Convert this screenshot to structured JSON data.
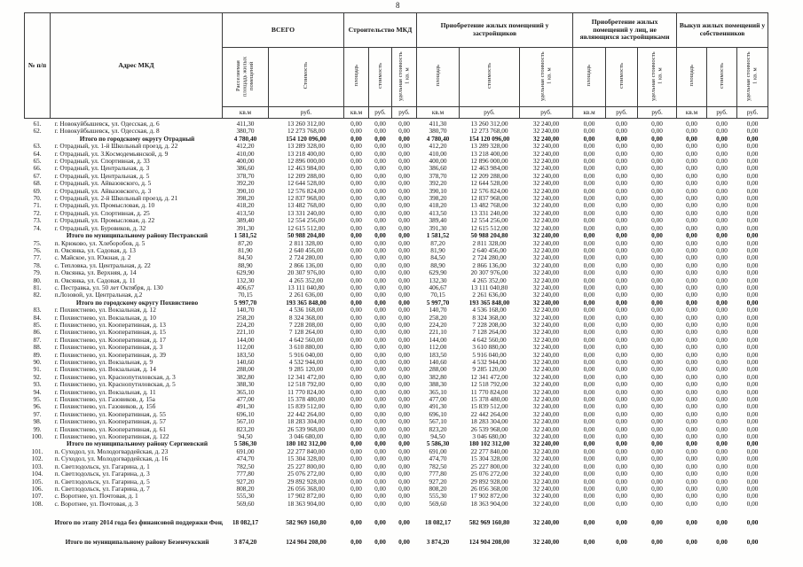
{
  "page_number": "8",
  "table": {
    "header": {
      "num": "№ п/п",
      "address": "Адрес МКД"
    },
    "groups": [
      {
        "label": "ВСЕГО",
        "cols": [
          "Расселяемая площадь жилых помещений",
          "Стоимость"
        ],
        "units": [
          "кв.м",
          "руб."
        ]
      },
      {
        "label": "Строительство МКД",
        "cols": [
          "площадь",
          "стоимость",
          "удельная стоимость 1 кв. м"
        ],
        "units": [
          "кв.м",
          "руб.",
          "руб."
        ]
      },
      {
        "label": "Приобретение жилых помещений у застройщиков",
        "cols": [
          "площадь",
          "стоимость",
          "удельная стоимость 1 кв. м"
        ],
        "units": [
          "кв.м",
          "руб.",
          "руб."
        ]
      },
      {
        "label": "Приобретение жилых помещений у лиц, не являющихся застройщиками",
        "cols": [
          "площадь",
          "стоимость",
          "удельная стоимость 1 кв. м"
        ],
        "units": [
          "кв.м",
          "руб.",
          "руб."
        ]
      },
      {
        "label": "Выкуп жилых помещений у собственников",
        "cols": [
          "площадь",
          "стоимость",
          "удельная стоимость 1 кв. м"
        ],
        "units": [
          "кв.м",
          "руб.",
          "руб."
        ]
      }
    ],
    "zero": "0,00",
    "unit_price": "32 240,00",
    "rows": [
      {
        "n": "61.",
        "a": "г. Новокуйбышевск, ул. Одесская, д. 6",
        "s": "411,30",
        "c": "13 260 312,00"
      },
      {
        "n": "62.",
        "a": "г. Новокуйбышевск, ул. Одесская, д. 8",
        "s": "380,70",
        "c": "12 273 768,00"
      },
      {
        "n": "",
        "a": "Итого по городскому округу Отрадный",
        "s": "4 780,40",
        "c": "154 120 096,00",
        "b": 1
      },
      {
        "n": "63.",
        "a": "г. Отрадный, ул. 1-й Школьный проезд, д. 22",
        "s": "412,20",
        "c": "13 289 328,00"
      },
      {
        "n": "64.",
        "a": "г. Отрадный, ул. З.Космодемьянской, д. 9",
        "s": "410,00",
        "c": "13 218 400,00"
      },
      {
        "n": "65.",
        "a": "г. Отрадный, ул. Спортивная, д. 33",
        "s": "400,00",
        "c": "12 896 000,00"
      },
      {
        "n": "66.",
        "a": "г. Отрадный, ул. Центральная, д. 3",
        "s": "386,60",
        "c": "12 463 984,00"
      },
      {
        "n": "67.",
        "a": "г. Отрадный, ул. Центральная, д. 5",
        "s": "378,70",
        "c": "12 209 288,00"
      },
      {
        "n": "68.",
        "a": "г. Отрадный, ул. Айвазовского, д. 5",
        "s": "392,20",
        "c": "12 644 528,00"
      },
      {
        "n": "69.",
        "a": "г. Отрадный, ул. Айвазовского, д. 3",
        "s": "390,10",
        "c": "12 576 824,00"
      },
      {
        "n": "70.",
        "a": "г. Отрадный, ул. 2-й Школьный проезд, д. 21",
        "s": "398,20",
        "c": "12 837 968,00"
      },
      {
        "n": "71.",
        "a": "г. Отрадный, ул. Промысловая, д. 10",
        "s": "418,20",
        "c": "13 482 768,00"
      },
      {
        "n": "72.",
        "a": "г. Отрадный, ул. Спортивная, д. 25",
        "s": "413,50",
        "c": "13 331 240,00"
      },
      {
        "n": "73.",
        "a": "г. Отрадный, ул. Промысловая, д. 22",
        "s": "389,40",
        "c": "12 554 256,00"
      },
      {
        "n": "74.",
        "a": "г. Отрадный, ул. Буровиков, д. 32",
        "s": "391,30",
        "c": "12 615 512,00"
      },
      {
        "n": "",
        "a": "Итого по муниципальному району Пестравский",
        "s": "1 581,52",
        "c": "50 988 204,80",
        "b": 1
      },
      {
        "n": "75.",
        "a": "п. Крюково, ул. Хлеборобов, д. 5",
        "s": "87,20",
        "c": "2 811 328,00"
      },
      {
        "n": "76.",
        "a": "п. Овсянка, ул. Садовая, д. 13",
        "s": "81,90",
        "c": "2 640 456,00"
      },
      {
        "n": "77.",
        "a": "с. Майское, ул. Южная, д. 2",
        "s": "84,50",
        "c": "2 724 280,00"
      },
      {
        "n": "78.",
        "a": "с. Тепловка, ул. Центральная, д. 22",
        "s": "88,90",
        "c": "2 866 136,00"
      },
      {
        "n": "79.",
        "a": "п. Овсянка, ул. Верхняя, д. 14",
        "s": "629,90",
        "c": "20 307 976,00"
      },
      {
        "n": "80.",
        "a": "п. Овсянка, ул. Садовая, д. 11",
        "s": "132,30",
        "c": "4 265 352,00"
      },
      {
        "n": "81.",
        "a": "с. Пестравка, ул. 50 лет Октября, д. 130",
        "s": "406,67",
        "c": "13 111 040,80"
      },
      {
        "n": "82.",
        "a": "п.Лозовой, ул. Центральная, д.2",
        "s": "70,15",
        "c": "2 261 636,00"
      },
      {
        "n": "",
        "a": "Итого по городскому округу Похвистнево",
        "s": "5 997,70",
        "c": "193 365 848,00",
        "b": 1
      },
      {
        "n": "83.",
        "a": "г. Похвистнево, ул. Вокзальная, д. 12",
        "s": "140,70",
        "c": "4 536 168,00"
      },
      {
        "n": "84.",
        "a": "г. Похвистнево, ул. Вокзальная, д. 10",
        "s": "258,20",
        "c": "8 324 368,00"
      },
      {
        "n": "85.",
        "a": "г. Похвистнево, ул. Кооперативная, д. 13",
        "s": "224,20",
        "c": "7 228 208,00"
      },
      {
        "n": "86.",
        "a": "г. Похвистнево, ул. Кооперативная, д. 15",
        "s": "221,10",
        "c": "7 128 264,00"
      },
      {
        "n": "87.",
        "a": "г. Похвистнево, ул. Кооперативная, д. 17",
        "s": "144,00",
        "c": "4 642 560,00"
      },
      {
        "n": "88.",
        "a": "г. Похвистнево, ул. Кооперативная, д. 3",
        "s": "112,00",
        "c": "3 610 880,00"
      },
      {
        "n": "89.",
        "a": "г. Похвистнево, ул. Кооперативная, д. 39",
        "s": "183,50",
        "c": "5 916 040,00"
      },
      {
        "n": "90.",
        "a": "г. Похвистнево, ул. Вокзальная, д. 9",
        "s": "140,60",
        "c": "4 532 944,00"
      },
      {
        "n": "91.",
        "a": "г. Похвистнево, ул. Вокзальная, д. 14",
        "s": "288,00",
        "c": "9 285 120,00"
      },
      {
        "n": "92.",
        "a": "г. Похвистнево, ул. Краснопутиловская, д. 3",
        "s": "382,80",
        "c": "12 341 472,00"
      },
      {
        "n": "93.",
        "a": "г. Похвистнево, ул. Краснопутиловская, д. 5",
        "s": "388,30",
        "c": "12 518 792,00"
      },
      {
        "n": "94.",
        "a": "г. Похвистнево, ул. Вокзальная, д. 11",
        "s": "365,10",
        "c": "11 770 824,00"
      },
      {
        "n": "95.",
        "a": "г. Похвистнево, ул. Газовиков, д. 15а",
        "s": "477,00",
        "c": "15 378 480,00"
      },
      {
        "n": "96.",
        "a": "г. Похвистнево, ул. Газовиков, д. 15б",
        "s": "491,30",
        "c": "15 839 512,00"
      },
      {
        "n": "97.",
        "a": "г. Похвистнево, ул. Кооперативная, д. 55",
        "s": "696,10",
        "c": "22 442 264,00"
      },
      {
        "n": "98.",
        "a": "г. Похвистнево, ул. Кооперативная, д. 57",
        "s": "567,10",
        "c": "18 283 304,00"
      },
      {
        "n": "99.",
        "a": "г. Похвистнево, ул. Кооперативная, д. 61",
        "s": "823,20",
        "c": "26 539 968,00"
      },
      {
        "n": "100.",
        "a": "г. Похвистнево, ул. Кооперативная, д. 122",
        "s": "94,50",
        "c": "3 046 680,00"
      },
      {
        "n": "",
        "a": "Итого по муниципальному району Сергиевский",
        "s": "5 586,30",
        "c": "180 102 312,00",
        "b": 1
      },
      {
        "n": "101.",
        "a": "п. Суходол, ул. Молодогвардейская, д. 23",
        "s": "691,00",
        "c": "22 277 840,00"
      },
      {
        "n": "102.",
        "a": "п. Суходол, ул. Молодогвардейская, д. 16",
        "s": "474,70",
        "c": "15 304 328,00"
      },
      {
        "n": "103.",
        "a": "п. Светлодольск, ул. Гагарина, д. 1",
        "s": "782,50",
        "c": "25 227 800,00"
      },
      {
        "n": "104.",
        "a": "п. Светлодольск, ул. Гагарина, д. 3",
        "s": "777,80",
        "c": "25 076 272,00"
      },
      {
        "n": "105.",
        "a": "п. Светлодольск, ул. Гагарина, д. 5",
        "s": "927,20",
        "c": "29 892 928,00"
      },
      {
        "n": "106.",
        "a": "п. Светлодольск, ул. Гагарина, д. 7",
        "s": "808,20",
        "c": "26 056 368,00"
      },
      {
        "n": "107.",
        "a": "с. Воротнее, ул. Почтовая, д. 1",
        "s": "555,30",
        "c": "17 902 872,00"
      },
      {
        "n": "108.",
        "a": "с. Воротнее, ул. Почтовая, д. 3",
        "s": "569,60",
        "c": "18 363 904,00"
      },
      {
        "n": "",
        "a": "Итого по этапу 2014 года без финансовой поддержки Фонда",
        "s": "18 082,17",
        "c": "582 969 160,80",
        "b": 1,
        "g": 1,
        "t": 1
      },
      {
        "n": "",
        "a": "Итого по муниципальному району Безенчукский",
        "s": "3 874,20",
        "c": "124 904 208,00",
        "b": 1,
        "g": 1,
        "t": 1
      }
    ]
  }
}
